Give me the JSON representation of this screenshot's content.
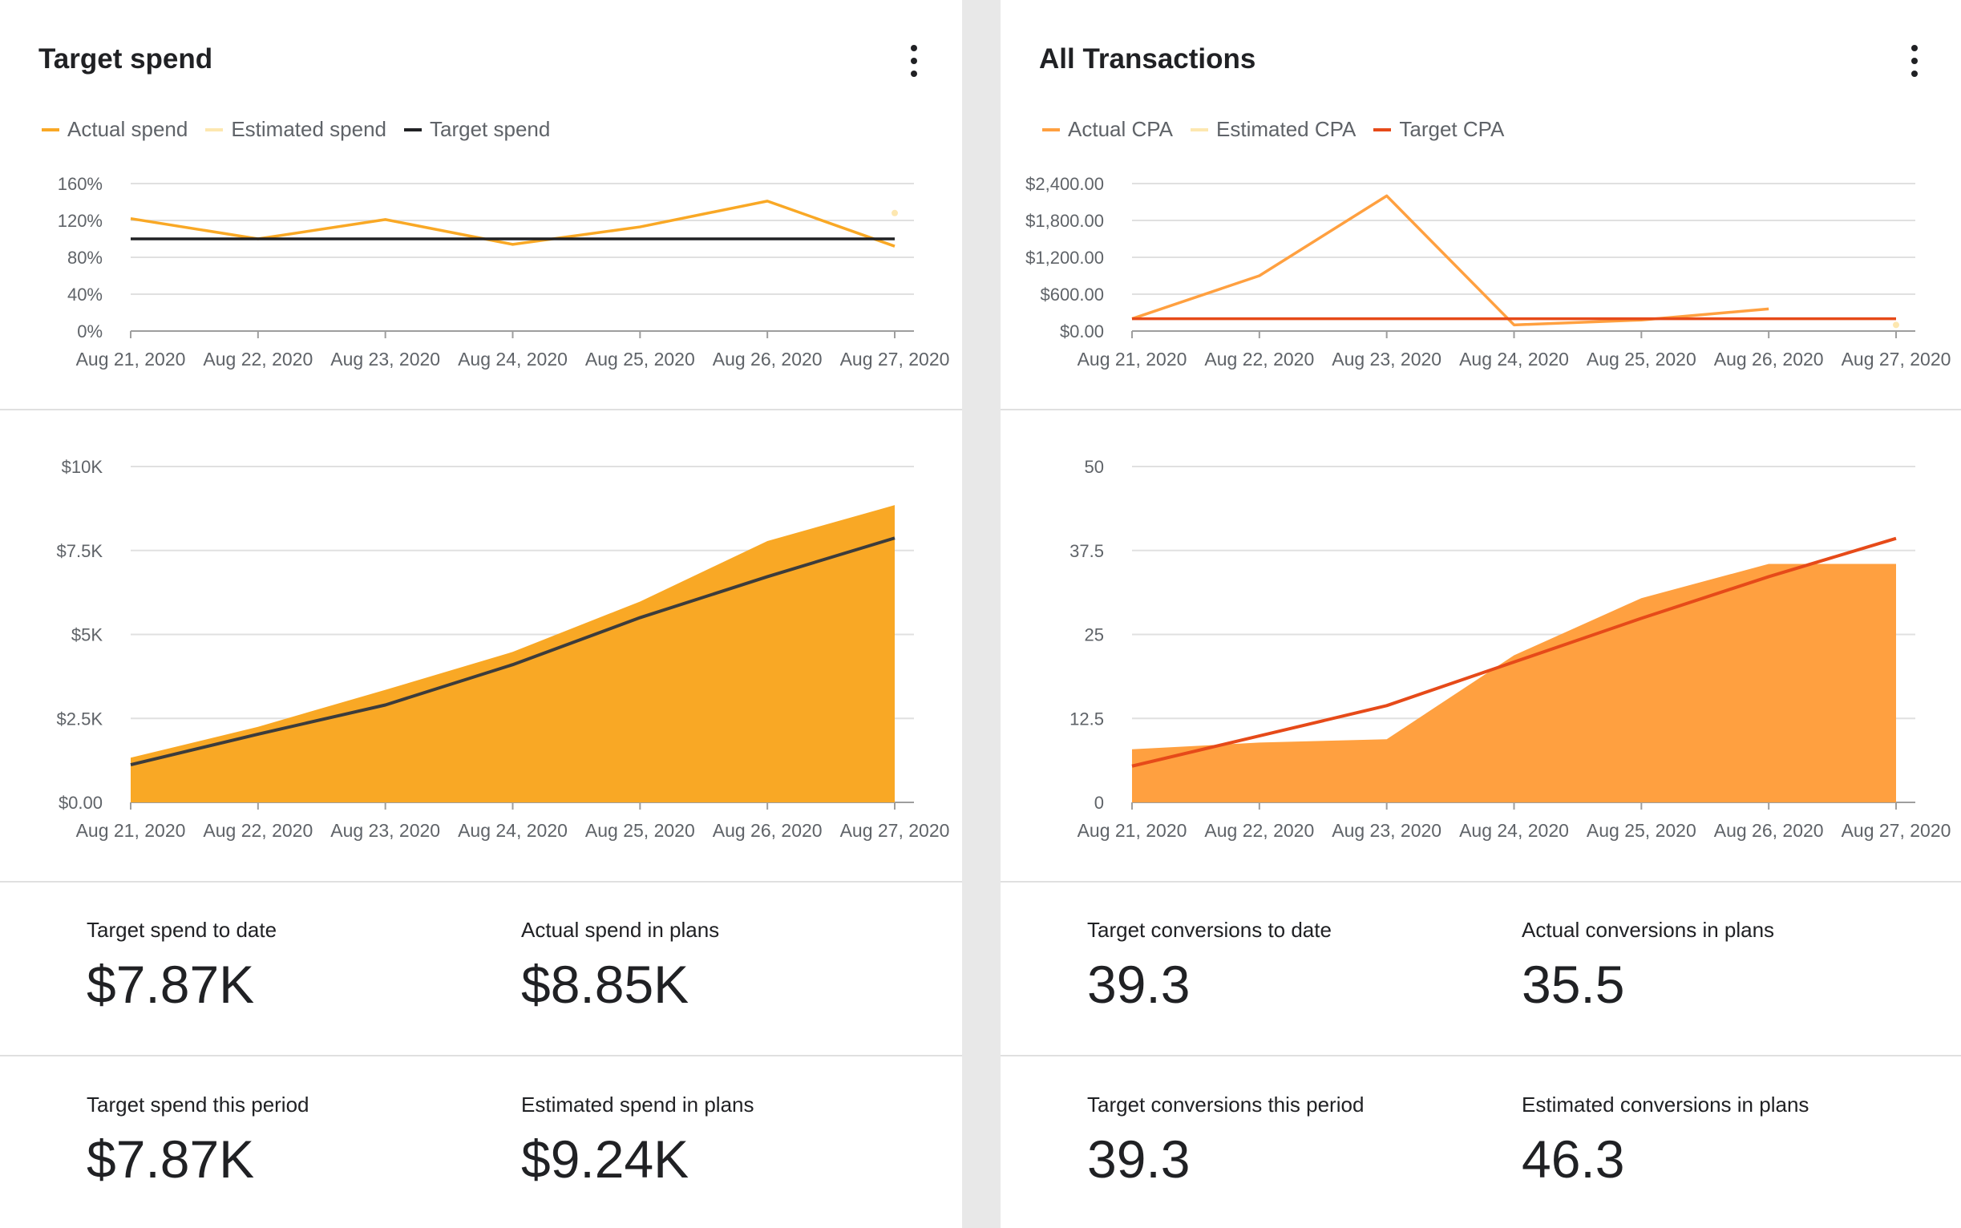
{
  "left": {
    "title": "Target spend",
    "legend": [
      {
        "label": "Actual spend",
        "color": "#f9a825"
      },
      {
        "label": "Estimated spend",
        "color": "#fde7b0"
      },
      {
        "label": "Target spend",
        "color": "#202124"
      }
    ],
    "stats": [
      {
        "label": "Target spend to date",
        "value": "$7.87K"
      },
      {
        "label": "Actual spend in plans",
        "value": "$8.85K"
      },
      {
        "label": "Target spend this period",
        "value": "$7.87K"
      },
      {
        "label": "Estimated spend in plans",
        "value": "$9.24K"
      }
    ]
  },
  "right": {
    "title": "All Transactions",
    "legend": [
      {
        "label": "Actual CPA",
        "color": "#ffa040"
      },
      {
        "label": "Estimated CPA",
        "color": "#fde7b0"
      },
      {
        "label": "Target CPA",
        "color": "#e64a19"
      }
    ],
    "stats": [
      {
        "label": "Target conversions to date",
        "value": "39.3"
      },
      {
        "label": "Actual conversions in plans",
        "value": "35.5"
      },
      {
        "label": "Target conversions this period",
        "value": "39.3"
      },
      {
        "label": "Estimated conversions in plans",
        "value": "46.3"
      }
    ]
  },
  "chart_data": [
    {
      "type": "line",
      "categories": [
        "Aug 21, 2020",
        "Aug 22, 2020",
        "Aug 23, 2020",
        "Aug 24, 2020",
        "Aug 25, 2020",
        "Aug 26, 2020",
        "Aug 27, 2020"
      ],
      "ylim": [
        0,
        160
      ],
      "yticks": [
        "0%",
        "40%",
        "80%",
        "120%",
        "160%"
      ],
      "series": [
        {
          "name": "Actual spend",
          "color": "#f9a825",
          "values": [
            122,
            100,
            121,
            94,
            113,
            141,
            92
          ]
        },
        {
          "name": "Estimated spend",
          "color": "#fde7b0",
          "values": [
            null,
            null,
            null,
            null,
            null,
            null,
            128
          ]
        },
        {
          "name": "Target spend",
          "color": "#202124",
          "values": [
            100,
            100,
            100,
            100,
            100,
            100,
            100
          ]
        }
      ]
    },
    {
      "type": "area",
      "categories": [
        "Aug 21, 2020",
        "Aug 22, 2020",
        "Aug 23, 2020",
        "Aug 24, 2020",
        "Aug 25, 2020",
        "Aug 26, 2020",
        "Aug 27, 2020"
      ],
      "ylim": [
        0,
        10000
      ],
      "yticks": [
        "$0.00",
        "$2.5K",
        "$5K",
        "$7.5K",
        "$10K"
      ],
      "series": [
        {
          "name": "Actual spend",
          "color": "#f9a825",
          "values": [
            1330,
            2250,
            3350,
            4480,
            5980,
            7780,
            8850
          ]
        },
        {
          "name": "Target spend",
          "color": "#3c3c3c",
          "values": [
            1120,
            2030,
            2900,
            4100,
            5500,
            6720,
            7870
          ]
        }
      ]
    },
    {
      "type": "line",
      "categories": [
        "Aug 21, 2020",
        "Aug 22, 2020",
        "Aug 23, 2020",
        "Aug 24, 2020",
        "Aug 25, 2020",
        "Aug 26, 2020",
        "Aug 27, 2020"
      ],
      "ylim": [
        0,
        2400
      ],
      "yticks": [
        "$0.00",
        "$600.00",
        "$1,200.00",
        "$1,800.00",
        "$2,400.00"
      ],
      "series": [
        {
          "name": "Actual CPA",
          "color": "#ffa040",
          "values": [
            200,
            900,
            2200,
            100,
            180,
            360,
            null
          ]
        },
        {
          "name": "Estimated CPA",
          "color": "#fde7b0",
          "values": [
            null,
            null,
            null,
            null,
            null,
            null,
            100
          ]
        },
        {
          "name": "Target CPA",
          "color": "#e64a19",
          "values": [
            200,
            200,
            200,
            200,
            200,
            200,
            200
          ]
        }
      ]
    },
    {
      "type": "area",
      "categories": [
        "Aug 21, 2020",
        "Aug 22, 2020",
        "Aug 23, 2020",
        "Aug 24, 2020",
        "Aug 25, 2020",
        "Aug 26, 2020",
        "Aug 27, 2020"
      ],
      "ylim": [
        0,
        50
      ],
      "yticks": [
        "0",
        "12.5",
        "25",
        "37.5",
        "50"
      ],
      "series": [
        {
          "name": "Actual CPA",
          "color": "#ffa040",
          "values": [
            7.9,
            8.9,
            9.4,
            21.9,
            30.4,
            35.5,
            35.5
          ]
        },
        {
          "name": "Target CPA",
          "color": "#e64a19",
          "values": [
            5.4,
            9.9,
            14.4,
            20.9,
            27.4,
            33.6,
            39.3
          ]
        }
      ]
    }
  ]
}
